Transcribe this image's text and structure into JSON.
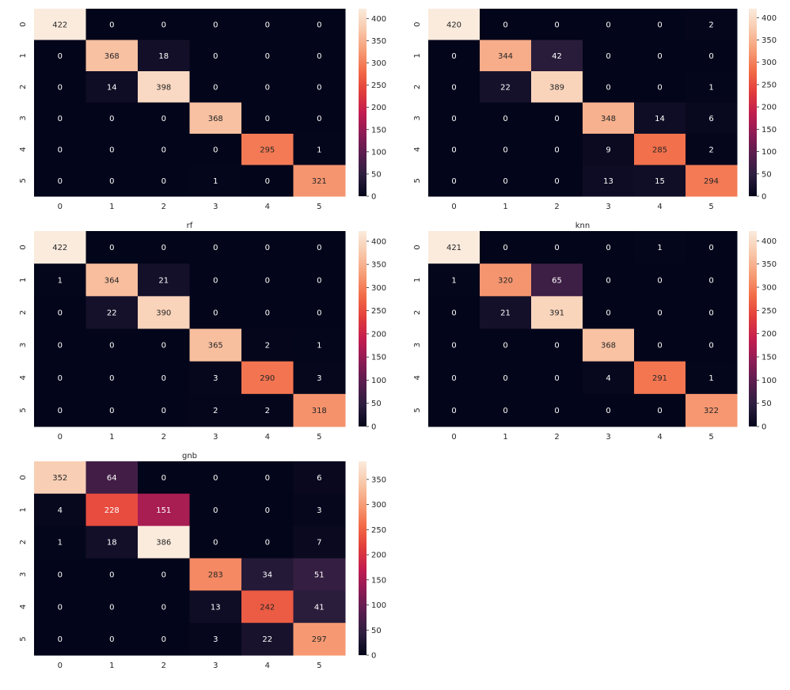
{
  "colors": {
    "colormap": [
      "#03051a",
      "#2c1e3e",
      "#581d4e",
      "#8c1c55",
      "#c21d4f",
      "#e23d3b",
      "#f26b47",
      "#f69d76",
      "#f8c8aa",
      "#faebdd"
    ],
    "text_light": "#ffffff",
    "text_dark": "#262626",
    "axis_text": "#262626"
  },
  "chart_data": [
    {
      "type": "heatmap",
      "title": "",
      "x_categories": [
        "0",
        "1",
        "2",
        "3",
        "4",
        "5"
      ],
      "y_categories": [
        "0",
        "1",
        "2",
        "3",
        "4",
        "5"
      ],
      "matrix": [
        [
          422,
          0,
          0,
          0,
          0,
          0
        ],
        [
          0,
          368,
          18,
          0,
          0,
          0
        ],
        [
          0,
          14,
          398,
          0,
          0,
          0
        ],
        [
          0,
          0,
          0,
          368,
          0,
          0
        ],
        [
          0,
          0,
          0,
          0,
          295,
          1
        ],
        [
          0,
          0,
          0,
          1,
          0,
          321
        ]
      ],
      "colorbar": {
        "range": [
          0,
          422
        ],
        "ticks": [
          "0",
          "50",
          "100",
          "150",
          "200",
          "250",
          "300",
          "350",
          "400"
        ]
      }
    },
    {
      "type": "heatmap",
      "title": "",
      "x_categories": [
        "0",
        "1",
        "2",
        "3",
        "4",
        "5"
      ],
      "y_categories": [
        "0",
        "1",
        "2",
        "3",
        "4",
        "5"
      ],
      "matrix": [
        [
          420,
          0,
          0,
          0,
          0,
          2
        ],
        [
          0,
          344,
          42,
          0,
          0,
          0
        ],
        [
          0,
          22,
          389,
          0,
          0,
          1
        ],
        [
          0,
          0,
          0,
          348,
          14,
          6
        ],
        [
          0,
          0,
          0,
          9,
          285,
          2
        ],
        [
          0,
          0,
          0,
          13,
          15,
          294
        ]
      ],
      "colorbar": {
        "range": [
          0,
          420
        ],
        "ticks": [
          "0",
          "50",
          "100",
          "150",
          "200",
          "250",
          "300",
          "350",
          "400"
        ]
      }
    },
    {
      "type": "heatmap",
      "title": "rf",
      "x_categories": [
        "0",
        "1",
        "2",
        "3",
        "4",
        "5"
      ],
      "y_categories": [
        "0",
        "1",
        "2",
        "3",
        "4",
        "5"
      ],
      "matrix": [
        [
          422,
          0,
          0,
          0,
          0,
          0
        ],
        [
          1,
          364,
          21,
          0,
          0,
          0
        ],
        [
          0,
          22,
          390,
          0,
          0,
          0
        ],
        [
          0,
          0,
          0,
          365,
          2,
          1
        ],
        [
          0,
          0,
          0,
          3,
          290,
          3
        ],
        [
          0,
          0,
          0,
          2,
          2,
          318
        ]
      ],
      "colorbar": {
        "range": [
          0,
          422
        ],
        "ticks": [
          "0",
          "50",
          "100",
          "150",
          "200",
          "250",
          "300",
          "350",
          "400"
        ]
      }
    },
    {
      "type": "heatmap",
      "title": "knn",
      "x_categories": [
        "0",
        "1",
        "2",
        "3",
        "4",
        "5"
      ],
      "y_categories": [
        "0",
        "1",
        "2",
        "3",
        "4",
        "5"
      ],
      "matrix": [
        [
          421,
          0,
          0,
          0,
          1,
          0
        ],
        [
          1,
          320,
          65,
          0,
          0,
          0
        ],
        [
          0,
          21,
          391,
          0,
          0,
          0
        ],
        [
          0,
          0,
          0,
          368,
          0,
          0
        ],
        [
          0,
          0,
          0,
          4,
          291,
          1
        ],
        [
          0,
          0,
          0,
          0,
          0,
          322
        ]
      ],
      "colorbar": {
        "range": [
          0,
          421
        ],
        "ticks": [
          "0",
          "50",
          "100",
          "150",
          "200",
          "250",
          "300",
          "350",
          "400"
        ]
      }
    },
    {
      "type": "heatmap",
      "title": "gnb",
      "x_categories": [
        "0",
        "1",
        "2",
        "3",
        "4",
        "5"
      ],
      "y_categories": [
        "0",
        "1",
        "2",
        "3",
        "4",
        "5"
      ],
      "matrix": [
        [
          352,
          64,
          0,
          0,
          0,
          6
        ],
        [
          4,
          228,
          151,
          0,
          0,
          3
        ],
        [
          1,
          18,
          386,
          0,
          0,
          7
        ],
        [
          0,
          0,
          0,
          283,
          34,
          51
        ],
        [
          0,
          0,
          0,
          13,
          242,
          41
        ],
        [
          0,
          0,
          0,
          3,
          22,
          297
        ]
      ],
      "colorbar": {
        "range": [
          0,
          386
        ],
        "ticks": [
          "0",
          "50",
          "100",
          "150",
          "200",
          "250",
          "300",
          "350"
        ]
      }
    }
  ]
}
